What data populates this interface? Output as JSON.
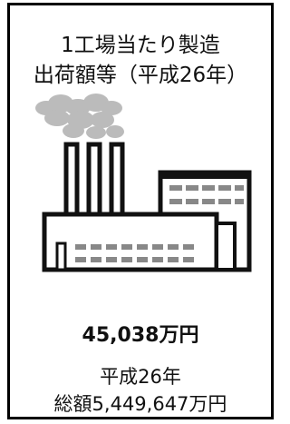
{
  "title": {
    "line1": "1工場当たり製造",
    "line2": "出荷額等（平成26年）"
  },
  "value": "45,038万円",
  "footer": {
    "line1": "平成26年",
    "line2": "総額5,449,647万円"
  }
}
